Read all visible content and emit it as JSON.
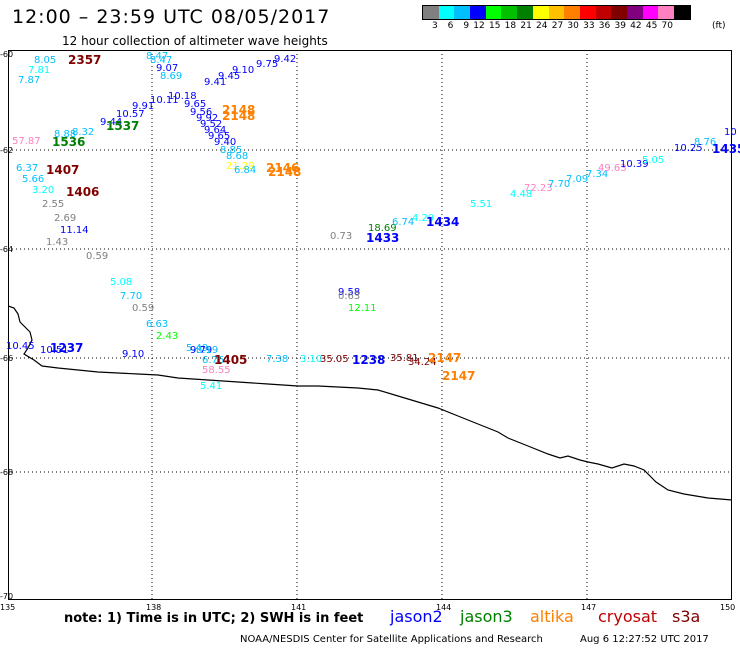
{
  "title": "12:00 – 23:59 UTC 08/05/2017",
  "subtitle": "12 hour collection of altimeter wave heights",
  "legend": {
    "colors": [
      "#808080",
      "#00ffff",
      "#00bfff",
      "#0000ff",
      "#00ff00",
      "#00c000",
      "#008000",
      "#ffff00",
      "#ffc000",
      "#ff8000",
      "#ff0000",
      "#c00000",
      "#800000",
      "#800080",
      "#ff00ff",
      "#ff80c0",
      "#000000"
    ],
    "labels": [
      "3",
      "6",
      "9",
      "12",
      "15",
      "18",
      "21",
      "24",
      "27",
      "30",
      "33",
      "36",
      "39",
      "42",
      "45",
      "70"
    ],
    "unit": "(ft)"
  },
  "lat_labels": [
    "-60",
    "-62",
    "-64",
    "-66",
    "-68",
    "-70"
  ],
  "lon_labels": [
    "135",
    "138",
    "141",
    "144",
    "147",
    "150"
  ],
  "observations": [
    {
      "t": "8.47",
      "c": "#00bfff"
    },
    {
      "t": "8.47",
      "c": "#00bfff"
    },
    {
      "t": "9.07",
      "c": "#0000ff"
    },
    {
      "t": "8.69",
      "c": "#00bfff"
    },
    {
      "t": "9.42",
      "c": "#0000ff"
    },
    {
      "t": "9.75",
      "c": "#0000ff"
    },
    {
      "t": "9.10",
      "c": "#0000ff"
    },
    {
      "t": "9.45",
      "c": "#0000ff"
    },
    {
      "t": "9.41",
      "c": "#0000ff"
    },
    {
      "t": "8.05",
      "c": "#00bfff"
    },
    {
      "t": "7.81",
      "c": "#00ffff"
    },
    {
      "t": "7.87",
      "c": "#00bfff"
    },
    {
      "t": "10.18",
      "c": "#0000ff"
    },
    {
      "t": "10.11",
      "c": "#0000ff"
    },
    {
      "t": "9.91",
      "c": "#0000ff"
    },
    {
      "t": "10.57",
      "c": "#0000ff"
    },
    {
      "t": "9.44",
      "c": "#0000ff"
    },
    {
      "t": "8.32",
      "c": "#00bfff"
    },
    {
      "t": "8.88",
      "c": "#00bfff"
    },
    {
      "t": "57.87",
      "c": "#ff80c0"
    },
    {
      "t": "9.65",
      "c": "#0000ff"
    },
    {
      "t": "9.56",
      "c": "#0000ff"
    },
    {
      "t": "9.92",
      "c": "#0000ff"
    },
    {
      "t": "9.52",
      "c": "#0000ff"
    },
    {
      "t": "9.64",
      "c": "#0000ff"
    },
    {
      "t": "9.65",
      "c": "#0000ff"
    },
    {
      "t": "9.40",
      "c": "#0000ff"
    },
    {
      "t": "8.85",
      "c": "#00bfff"
    },
    {
      "t": "8.68",
      "c": "#00bfff"
    },
    {
      "t": "21.29",
      "c": "#ffff00"
    },
    {
      "t": "6.84",
      "c": "#00bfff"
    },
    {
      "t": "6.37",
      "c": "#00bfff"
    },
    {
      "t": "5.66",
      "c": "#00bfff"
    },
    {
      "t": "3.20",
      "c": "#00ffff"
    },
    {
      "t": "2.55",
      "c": "#808080"
    },
    {
      "t": "2.69",
      "c": "#808080"
    },
    {
      "t": "11.14",
      "c": "#0000ff"
    },
    {
      "t": "1.43",
      "c": "#808080"
    },
    {
      "t": "0.59",
      "c": "#808080"
    },
    {
      "t": "0.73",
      "c": "#808080"
    },
    {
      "t": "18.69",
      "c": "#008000"
    },
    {
      "t": "6.74",
      "c": "#00bfff"
    },
    {
      "t": "4.29",
      "c": "#00ffff"
    },
    {
      "t": "5.51",
      "c": "#00ffff"
    },
    {
      "t": "4.48",
      "c": "#00ffff"
    },
    {
      "t": "72.23",
      "c": "#ff80c0"
    },
    {
      "t": "7.70",
      "c": "#00bfff"
    },
    {
      "t": "7.09",
      "c": "#00bfff"
    },
    {
      "t": "7.34",
      "c": "#00bfff"
    },
    {
      "t": "49.63",
      "c": "#ff80c0"
    },
    {
      "t": "10.39",
      "c": "#0000ff"
    },
    {
      "t": "5.05",
      "c": "#00ffff"
    },
    {
      "t": "10.25",
      "c": "#0000ff"
    },
    {
      "t": "8.76",
      "c": "#00bfff"
    },
    {
      "t": "10",
      "c": "#0000ff"
    },
    {
      "t": "5.08",
      "c": "#00ffff"
    },
    {
      "t": "7.70",
      "c": "#00bfff"
    },
    {
      "t": "0.59",
      "c": "#808080"
    },
    {
      "t": "6.63",
      "c": "#00bfff"
    },
    {
      "t": "2.43",
      "c": "#00ff00"
    },
    {
      "t": "5.49",
      "c": "#00bfff"
    },
    {
      "t": "9.58",
      "c": "#0000ff"
    },
    {
      "t": "0.63",
      "c": "#808080"
    },
    {
      "t": "12.11",
      "c": "#00ff00"
    },
    {
      "t": "10.45",
      "c": "#0000ff"
    },
    {
      "t": "10.51",
      "c": "#0000ff"
    },
    {
      "t": "9.10",
      "c": "#0000ff"
    },
    {
      "t": "9.79",
      "c": "#0000ff"
    },
    {
      "t": "8.19",
      "c": "#00bfff"
    },
    {
      "t": "6.76",
      "c": "#00bfff"
    },
    {
      "t": "58.55",
      "c": "#ff80c0"
    },
    {
      "t": "5.41",
      "c": "#00ffff"
    },
    {
      "t": "7.38",
      "c": "#00bfff"
    },
    {
      "t": "3.10",
      "c": "#00ffff"
    },
    {
      "t": "35.05",
      "c": "#800000"
    },
    {
      "t": "35.81",
      "c": "#800000"
    },
    {
      "t": "34.24",
      "c": "#800000"
    }
  ],
  "times": [
    {
      "t": "2357",
      "c": "#800000"
    },
    {
      "t": "2148",
      "c": "#ff8000"
    },
    {
      "t": "2148",
      "c": "#ff8000"
    },
    {
      "t": "1537",
      "c": "#008000"
    },
    {
      "t": "1536",
      "c": "#008000"
    },
    {
      "t": "2146",
      "c": "#ff8000"
    },
    {
      "t": "2148",
      "c": "#ff8000"
    },
    {
      "t": "1407",
      "c": "#800000"
    },
    {
      "t": "1406",
      "c": "#800000"
    },
    {
      "t": "1433",
      "c": "#0000ff"
    },
    {
      "t": "1434",
      "c": "#0000ff"
    },
    {
      "t": "1435",
      "c": "#0000ff"
    },
    {
      "t": "1237",
      "c": "#0000ff"
    },
    {
      "t": "1405",
      "c": "#800000"
    },
    {
      "t": "1238",
      "c": "#0000ff"
    },
    {
      "t": "2147",
      "c": "#ff8000"
    },
    {
      "t": "2147",
      "c": "#ff8000"
    }
  ],
  "note": "note: 1) Time is in UTC; 2) SWH is in feet",
  "satellites": [
    {
      "name": "jason2",
      "color": "#0000ff"
    },
    {
      "name": "jason3",
      "color": "#008000"
    },
    {
      "name": "altika",
      "color": "#ff8000"
    },
    {
      "name": "cryosat",
      "color": "#c00000"
    },
    {
      "name": "s3a",
      "color": "#800000"
    }
  ],
  "credit": "NOAA/NESDIS Center for Satellite Applications and Research",
  "stamp": "Aug  6 12:27:52 UTC 2017"
}
